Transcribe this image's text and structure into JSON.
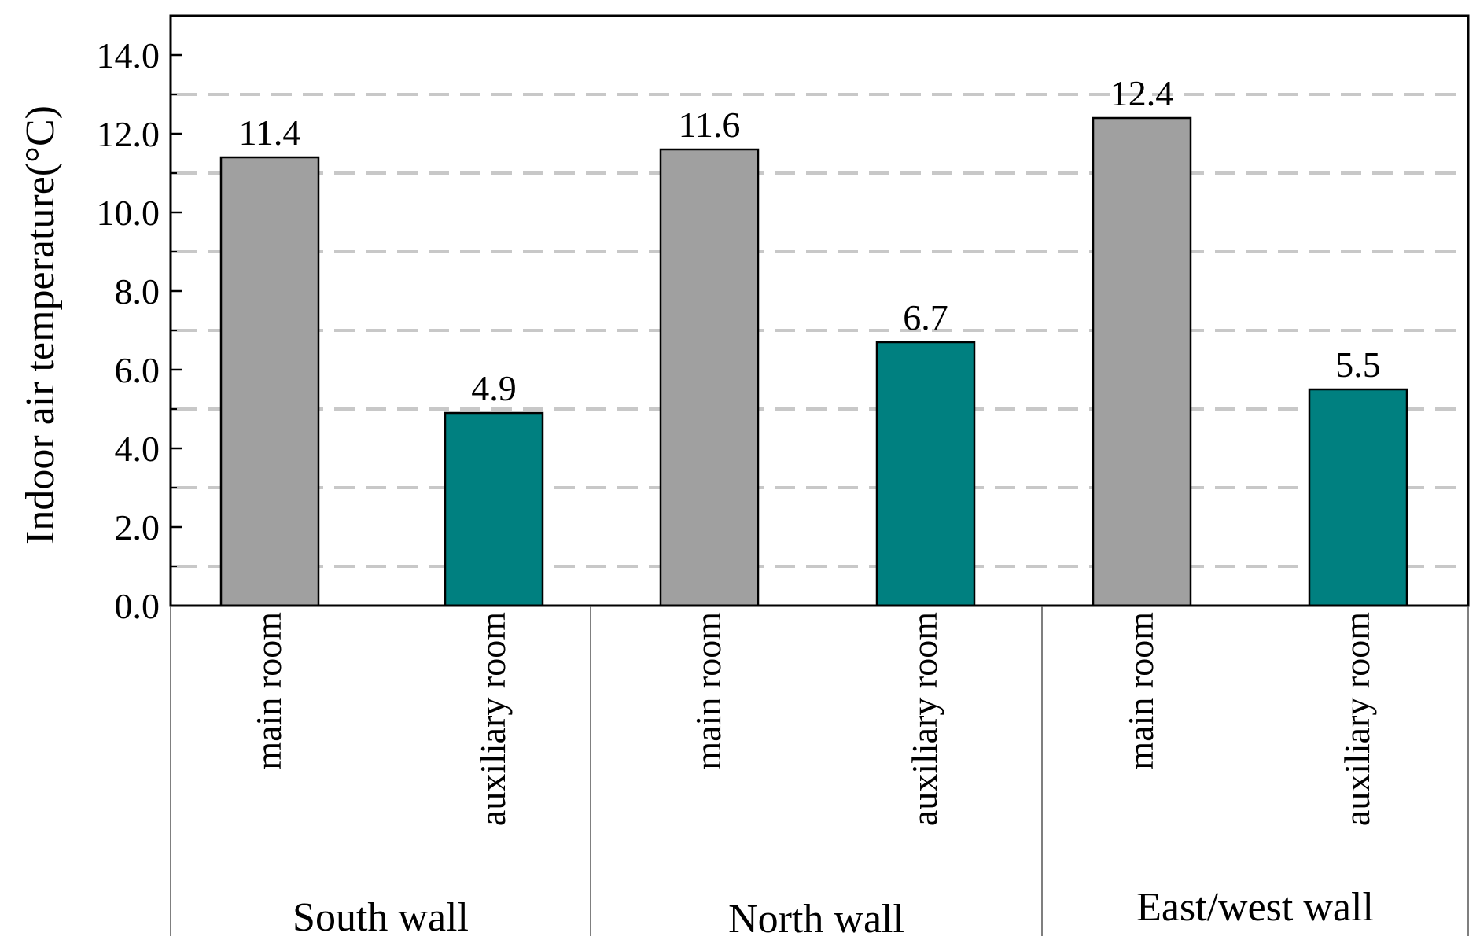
{
  "chart_data": {
    "type": "bar",
    "ylabel": "Indoor air temperature(°C)",
    "ylim": [
      0,
      15
    ],
    "yticks": [
      0,
      2,
      4,
      6,
      8,
      10,
      12,
      14
    ],
    "ytick_labels": [
      "0.0",
      "2.0",
      "4.0",
      "6.0",
      "8.0",
      "10.0",
      "12.0",
      "14.0"
    ],
    "gridlines": [
      1,
      3,
      5,
      7,
      9,
      11,
      13
    ],
    "grid": "dashed horizontal at odd values",
    "groups": [
      {
        "name": "South wall",
        "bars": [
          {
            "category": "main room",
            "value": 11.4,
            "label": "11.4"
          },
          {
            "category": "auxiliary room",
            "value": 4.9,
            "label": "4.9"
          }
        ]
      },
      {
        "name": "North wall",
        "bars": [
          {
            "category": "main room",
            "value": 11.6,
            "label": "11.6"
          },
          {
            "category": "auxiliary room",
            "value": 6.7,
            "label": "6.7"
          }
        ]
      },
      {
        "name": "East/west wall",
        "bars": [
          {
            "category": "main room",
            "value": 12.4,
            "label": "12.4"
          },
          {
            "category": "auxiliary room",
            "value": 5.5,
            "label": "5.5"
          }
        ]
      }
    ],
    "colors": {
      "main room": "#a0a0a0",
      "auxiliary room": "#008080",
      "grid": "#c8c8c8",
      "axis": "#000000"
    }
  }
}
